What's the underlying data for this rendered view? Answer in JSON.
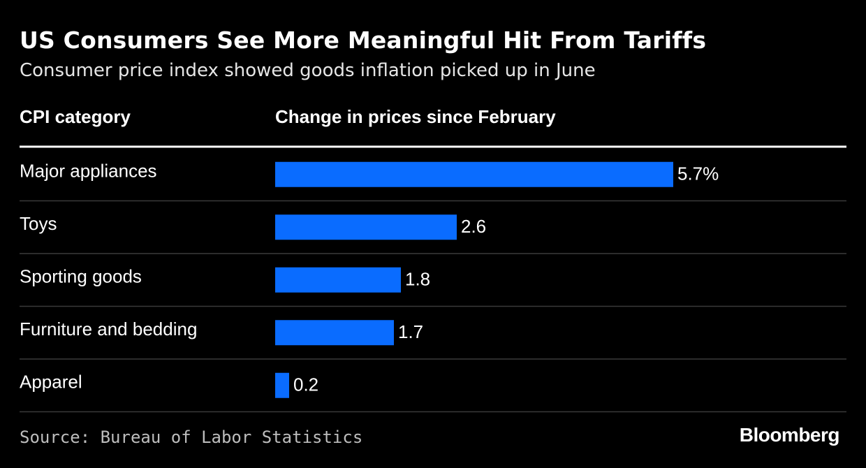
{
  "title": "US Consumers See More Meaningful Hit From Tariffs",
  "subtitle": "Consumer price index showed goods inflation picked up in June",
  "columns": {
    "category": "CPI category",
    "value": "Change in prices since February"
  },
  "source": "Source: Bureau of Labor Statistics",
  "brand": "Bloomberg",
  "colors": {
    "background": "#000000",
    "bar": "#0a6cff",
    "text": "#ffffff",
    "divider": "#3a3a3a"
  },
  "chart_data": {
    "type": "bar",
    "orientation": "horizontal",
    "title": "US Consumers See More Meaningful Hit From Tariffs",
    "subtitle": "Consumer price index showed goods inflation picked up in June",
    "xlabel": "Change in prices since February",
    "ylabel": "CPI category",
    "categories": [
      "Major appliances",
      "Toys",
      "Sporting goods",
      "Furniture and bedding",
      "Apparel"
    ],
    "values": [
      5.7,
      2.6,
      1.8,
      1.7,
      0.2
    ],
    "value_labels": [
      "5.7%",
      "2.6",
      "1.8",
      "1.7",
      "0.2"
    ],
    "xlim": [
      0,
      5.7
    ],
    "grid": false,
    "legend": "none"
  }
}
